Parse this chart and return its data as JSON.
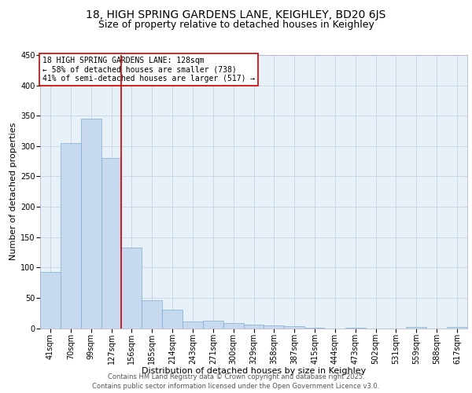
{
  "title_line1": "18, HIGH SPRING GARDENS LANE, KEIGHLEY, BD20 6JS",
  "title_line2": "Size of property relative to detached houses in Keighley",
  "xlabel": "Distribution of detached houses by size in Keighley",
  "ylabel": "Number of detached properties",
  "bar_labels": [
    "41sqm",
    "70sqm",
    "99sqm",
    "127sqm",
    "156sqm",
    "185sqm",
    "214sqm",
    "243sqm",
    "271sqm",
    "300sqm",
    "329sqm",
    "358sqm",
    "387sqm",
    "415sqm",
    "444sqm",
    "473sqm",
    "502sqm",
    "531sqm",
    "559sqm",
    "588sqm",
    "617sqm"
  ],
  "bar_values": [
    93,
    305,
    345,
    280,
    133,
    46,
    30,
    11,
    12,
    8,
    6,
    5,
    3,
    1,
    0,
    1,
    0,
    0,
    2,
    0,
    2
  ],
  "bar_color": "#c6d9ee",
  "bar_edge_color": "#7bafd4",
  "grid_color": "#c8d8e8",
  "bg_color": "#e8f0f8",
  "vline_color": "#cc0000",
  "annotation_text": "18 HIGH SPRING GARDENS LANE: 128sqm\n← 58% of detached houses are smaller (738)\n41% of semi-detached houses are larger (517) →",
  "annotation_box_color": "#ffffff",
  "annotation_box_edge": "#cc0000",
  "ylim": [
    0,
    450
  ],
  "yticks": [
    0,
    50,
    100,
    150,
    200,
    250,
    300,
    350,
    400,
    450
  ],
  "footer_line1": "Contains HM Land Registry data © Crown copyright and database right 2025.",
  "footer_line2": "Contains public sector information licensed under the Open Government Licence v3.0.",
  "title_fontsize": 10,
  "subtitle_fontsize": 9,
  "axis_label_fontsize": 8,
  "tick_fontsize": 7,
  "annotation_fontsize": 7,
  "footer_fontsize": 6
}
